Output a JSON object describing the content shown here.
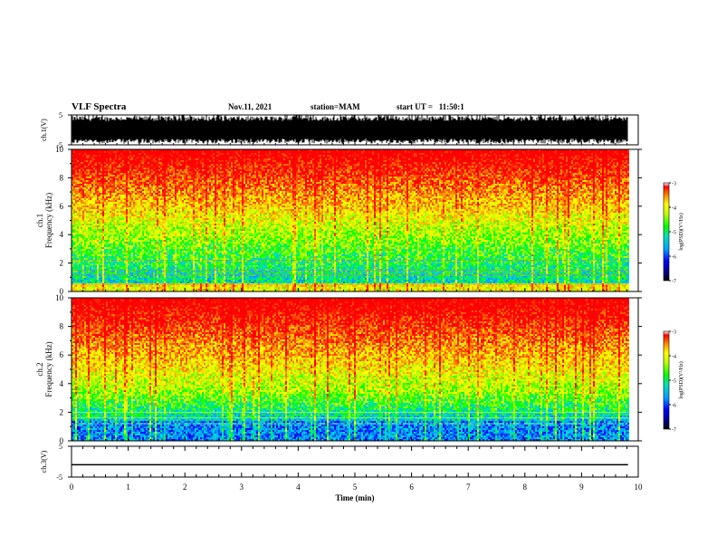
{
  "header": {
    "title": "VLF Spectra",
    "date": "Nov.11, 2021",
    "station": "station=MAM",
    "start": "start UT =   11:50:1"
  },
  "chart_data": [
    {
      "type": "line",
      "ylabel": "ch.1(V)",
      "ylim": [
        -5,
        5
      ],
      "yticks": [
        "5",
        "-5"
      ],
      "description_band": [
        -3,
        3
      ]
    },
    {
      "type": "heatmap",
      "ylabel_channel": "ch.1",
      "ylabel": "Frequency (kHz)",
      "ylim": [
        0,
        10
      ],
      "yticks": [
        "0",
        "2",
        "4",
        "6",
        "8",
        "10"
      ],
      "colorbar": {
        "label": "log(PSD)(V²/Hz)",
        "ticks": [
          "-3",
          "-4",
          "-5",
          "-6",
          "-7"
        ],
        "range": [
          -7,
          -3
        ]
      }
    },
    {
      "type": "heatmap",
      "ylabel_channel": "ch.2",
      "ylabel": "Frequency (kHz)",
      "ylim": [
        0,
        10
      ],
      "yticks": [
        "0",
        "2",
        "4",
        "6",
        "8",
        "10"
      ],
      "colorbar": {
        "label": "log(PSD)(V²/Hz)",
        "ticks": [
          "-3",
          "-4",
          "-5",
          "-6",
          "-7"
        ],
        "range": [
          -7,
          -3
        ]
      }
    },
    {
      "type": "line",
      "ylabel": "ch.3(V)",
      "ylim": [
        -5,
        5
      ],
      "yticks": [
        "5",
        "-5"
      ],
      "constant_value": -1
    }
  ],
  "xaxis": {
    "label": "Time (min)",
    "xlim": [
      0,
      10
    ],
    "ticks": [
      "0",
      "1",
      "2",
      "3",
      "4",
      "5",
      "6",
      "7",
      "8",
      "9",
      "10"
    ],
    "data_end": 9.82
  },
  "colors": {
    "palette": [
      "#000080",
      "#0000ff",
      "#00a0ff",
      "#00e0c0",
      "#00ff00",
      "#c0ff00",
      "#ffff00",
      "#ff8000",
      "#ff0000"
    ]
  }
}
